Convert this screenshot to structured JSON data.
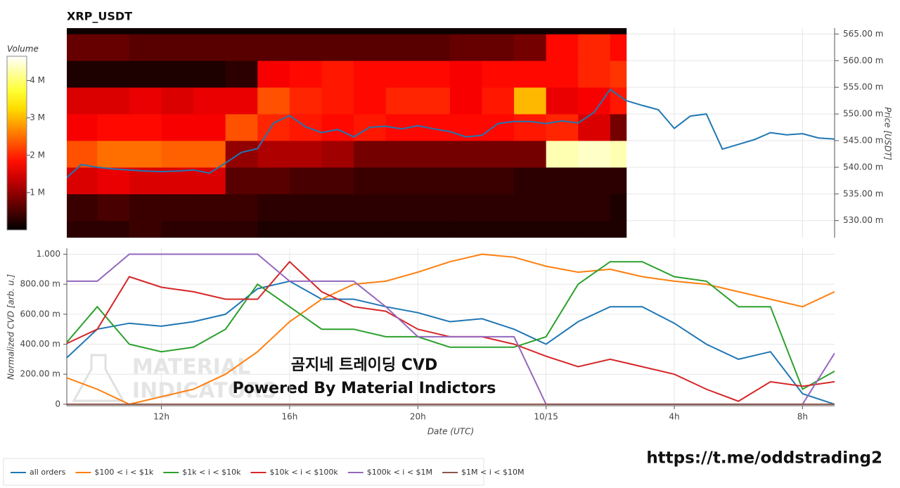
{
  "chart_data": [
    {
      "type": "heatmap",
      "title": "XRP_USDT",
      "y_label": "Price [USDT]",
      "colorbar_label": "Volume",
      "xlim": [
        9.05,
        33
      ],
      "ylim": [
        526.8,
        566.1
      ],
      "yticks": [
        {
          "value": 530,
          "label": "530.00 m"
        },
        {
          "value": 535,
          "label": "535.00 m"
        },
        {
          "value": 540,
          "label": "540.00 m"
        },
        {
          "value": 545,
          "label": "545.00 m"
        },
        {
          "value": 550,
          "label": "550.00 m"
        },
        {
          "value": 555,
          "label": "555.00 m"
        },
        {
          "value": 560,
          "label": "560.00 m"
        },
        {
          "value": 565,
          "label": "565.00 m"
        }
      ],
      "clim": [
        0,
        4.65
      ],
      "cticks": [
        {
          "value": 1,
          "label": "1 M"
        },
        {
          "value": 2,
          "label": "2 M"
        },
        {
          "value": 3,
          "label": "3 M"
        },
        {
          "value": 4,
          "label": "4 M"
        }
      ],
      "x_edges": [
        9,
        10,
        11,
        12,
        13,
        14,
        15,
        16,
        17,
        18,
        19,
        20,
        21,
        22,
        23,
        24,
        25,
        26,
        26.5
      ],
      "y_edges": [
        525,
        530,
        535,
        540,
        545,
        550,
        555,
        560,
        565,
        570
      ],
      "values": [
        [
          0.3,
          0.3,
          0.4,
          0.3,
          0.3,
          0.3,
          0.2,
          0.2,
          0.2,
          0.2,
          0.2,
          0.2,
          0.2,
          0.2,
          0.2,
          0.2,
          0.2,
          0.2
        ],
        [
          0.4,
          0.5,
          0.4,
          0.4,
          0.4,
          0.4,
          0.3,
          0.3,
          0.3,
          0.3,
          0.3,
          0.3,
          0.3,
          0.3,
          0.3,
          0.3,
          0.3,
          0.2
        ],
        [
          1.5,
          1.6,
          1.5,
          1.5,
          1.5,
          0.6,
          0.6,
          0.5,
          0.5,
          0.4,
          0.4,
          0.4,
          0.4,
          0.4,
          0.3,
          0.3,
          0.3,
          0.3
        ],
        [
          2.3,
          2.5,
          2.5,
          2.4,
          2.4,
          1.0,
          1.2,
          1.2,
          1.1,
          0.8,
          0.8,
          0.8,
          0.8,
          0.8,
          0.8,
          4.3,
          4.4,
          4.3
        ],
        [
          1.7,
          1.8,
          1.8,
          1.7,
          1.7,
          2.3,
          2.0,
          1.9,
          1.8,
          1.9,
          1.8,
          1.8,
          1.8,
          1.8,
          1.9,
          2.0,
          1.5,
          0.8
        ],
        [
          1.5,
          1.5,
          1.6,
          1.5,
          1.6,
          1.6,
          2.3,
          2.0,
          1.9,
          1.8,
          2.0,
          2.0,
          1.7,
          1.9,
          3.0,
          1.6,
          1.7,
          1.9
        ],
        [
          0.2,
          0.2,
          0.2,
          0.2,
          0.2,
          0.3,
          1.7,
          1.8,
          1.9,
          1.8,
          1.8,
          1.8,
          1.7,
          1.8,
          1.8,
          1.8,
          2.0,
          2.1
        ],
        [
          0.7,
          0.7,
          0.6,
          0.6,
          0.6,
          0.6,
          0.6,
          0.6,
          0.6,
          0.6,
          0.6,
          0.6,
          0.7,
          0.7,
          0.8,
          1.8,
          2.0,
          1.8
        ],
        [
          0.1,
          0.1,
          0.1,
          0.1,
          0.1,
          0.1,
          0.1,
          0.1,
          0.1,
          0.1,
          0.1,
          0.1,
          0.1,
          0.1,
          0.1,
          0.1,
          0.1,
          0.1
        ]
      ],
      "series": [
        {
          "color": "#1f77b4",
          "x": [
            9,
            9.5,
            10,
            10.5,
            11,
            11.5,
            12,
            12.5,
            13,
            13.5,
            14,
            14.5,
            15,
            15.5,
            16,
            16.5,
            17,
            17.5,
            18,
            18.5,
            19,
            19.5,
            20,
            20.5,
            21,
            21.5,
            22,
            22.5,
            23,
            23.5,
            24,
            24.5,
            25,
            25.5,
            26,
            26.5,
            27,
            27.5,
            28,
            28.5,
            29,
            29.5,
            30,
            30.5,
            31,
            31.5,
            32,
            32.5,
            33
          ],
          "values": [
            537.8,
            540.5,
            540.0,
            539.7,
            539.5,
            539.3,
            539.2,
            539.3,
            539.5,
            538.9,
            540.8,
            542.8,
            543.5,
            548.3,
            549.7,
            547.6,
            546.5,
            547.1,
            545.7,
            547.5,
            547.7,
            547.2,
            547.8,
            547.2,
            546.7,
            545.7,
            546.0,
            548.2,
            548.6,
            548.6,
            548.2,
            548.7,
            548.3,
            550.3,
            554.6,
            552.5,
            551.6,
            550.8,
            547.3,
            549.6,
            550.0,
            543.4,
            544.3,
            545.2,
            546.5,
            546.1,
            546.3,
            545.5,
            545.3
          ]
        }
      ]
    },
    {
      "type": "line",
      "x_label": "Date (UTC)",
      "y_label": "Normalized CVD [arb. u.]",
      "xlim": [
        9.05,
        33
      ],
      "ylim": [
        -0.01,
        1.04
      ],
      "grid": true,
      "legend": "bottom",
      "xticks": [
        {
          "value": 12,
          "label": "12h"
        },
        {
          "value": 16,
          "label": "16h"
        },
        {
          "value": 20,
          "label": "20h"
        },
        {
          "value": 24,
          "label": "10/15"
        },
        {
          "value": 28,
          "label": "4h"
        },
        {
          "value": 32,
          "label": "8h"
        }
      ],
      "yticks": [
        0,
        {
          "value": 0.2,
          "label": "200.00 m"
        },
        {
          "value": 0.4,
          "label": "400.00 m"
        },
        {
          "value": 0.6,
          "label": "600.00 m"
        },
        {
          "value": 0.8,
          "label": "800.00 m"
        },
        {
          "value": 1,
          "label": "1.000"
        }
      ],
      "x": [
        9,
        10,
        11,
        12,
        13,
        14,
        15,
        16,
        17,
        18,
        19,
        20,
        21,
        22,
        23,
        24,
        25,
        26,
        27,
        28,
        29,
        30,
        31,
        32,
        33
      ],
      "series": [
        {
          "name": "all orders",
          "color": "#1f77b4",
          "values": [
            0.3,
            0.5,
            0.54,
            0.52,
            0.55,
            0.6,
            0.77,
            0.82,
            0.7,
            0.7,
            0.65,
            0.61,
            0.55,
            0.57,
            0.5,
            0.4,
            0.55,
            0.65,
            0.65,
            0.54,
            0.4,
            0.3,
            0.35,
            0.07,
            0.0
          ]
        },
        {
          "name": "$100 < i < $1k",
          "color": "#ff7f0e",
          "values": [
            0.18,
            0.1,
            0.0,
            0.05,
            0.1,
            0.2,
            0.35,
            0.55,
            0.7,
            0.8,
            0.82,
            0.88,
            0.95,
            1.0,
            0.98,
            0.92,
            0.88,
            0.9,
            0.85,
            0.82,
            0.8,
            0.75,
            0.7,
            0.65,
            0.75
          ]
        },
        {
          "name": "$1k < i < $10k",
          "color": "#2ca02c",
          "values": [
            0.4,
            0.65,
            0.4,
            0.35,
            0.38,
            0.5,
            0.8,
            0.65,
            0.5,
            0.5,
            0.45,
            0.45,
            0.38,
            0.38,
            0.38,
            0.45,
            0.8,
            0.95,
            0.95,
            0.85,
            0.82,
            0.65,
            0.65,
            0.1,
            0.22
          ]
        },
        {
          "name": "$10k < i < $100k",
          "color": "#d62728",
          "values": [
            0.4,
            0.5,
            0.85,
            0.78,
            0.75,
            0.7,
            0.7,
            0.95,
            0.75,
            0.65,
            0.62,
            0.5,
            0.45,
            0.45,
            0.4,
            0.32,
            0.25,
            0.3,
            0.25,
            0.2,
            0.1,
            0.02,
            0.15,
            0.12,
            0.15
          ]
        },
        {
          "name": "$100k < i < $1M",
          "color": "#9467bd",
          "values": [
            0.82,
            0.82,
            1.0,
            1.0,
            1.0,
            1.0,
            1.0,
            0.82,
            0.82,
            0.82,
            0.65,
            0.45,
            0.45,
            0.45,
            0.45,
            0.0,
            0.0,
            0.0,
            0.0,
            0.0,
            0.0,
            0.0,
            0.0,
            0.0,
            0.34
          ]
        },
        {
          "name": "$1M < i < $10M",
          "color": "#8c564b",
          "values": [
            0,
            0,
            0,
            0,
            0,
            0,
            0,
            0,
            0,
            0,
            0,
            0,
            0,
            0,
            0,
            0,
            0,
            0,
            0,
            0,
            0,
            0,
            0,
            0,
            0
          ]
        }
      ],
      "annotations": [
        "MATERIAL",
        "INDICATORS",
        "곰지네 트레이딩 CVD",
        "Powered By Material Indictors",
        "https://t.me/oddstrading2"
      ]
    }
  ]
}
